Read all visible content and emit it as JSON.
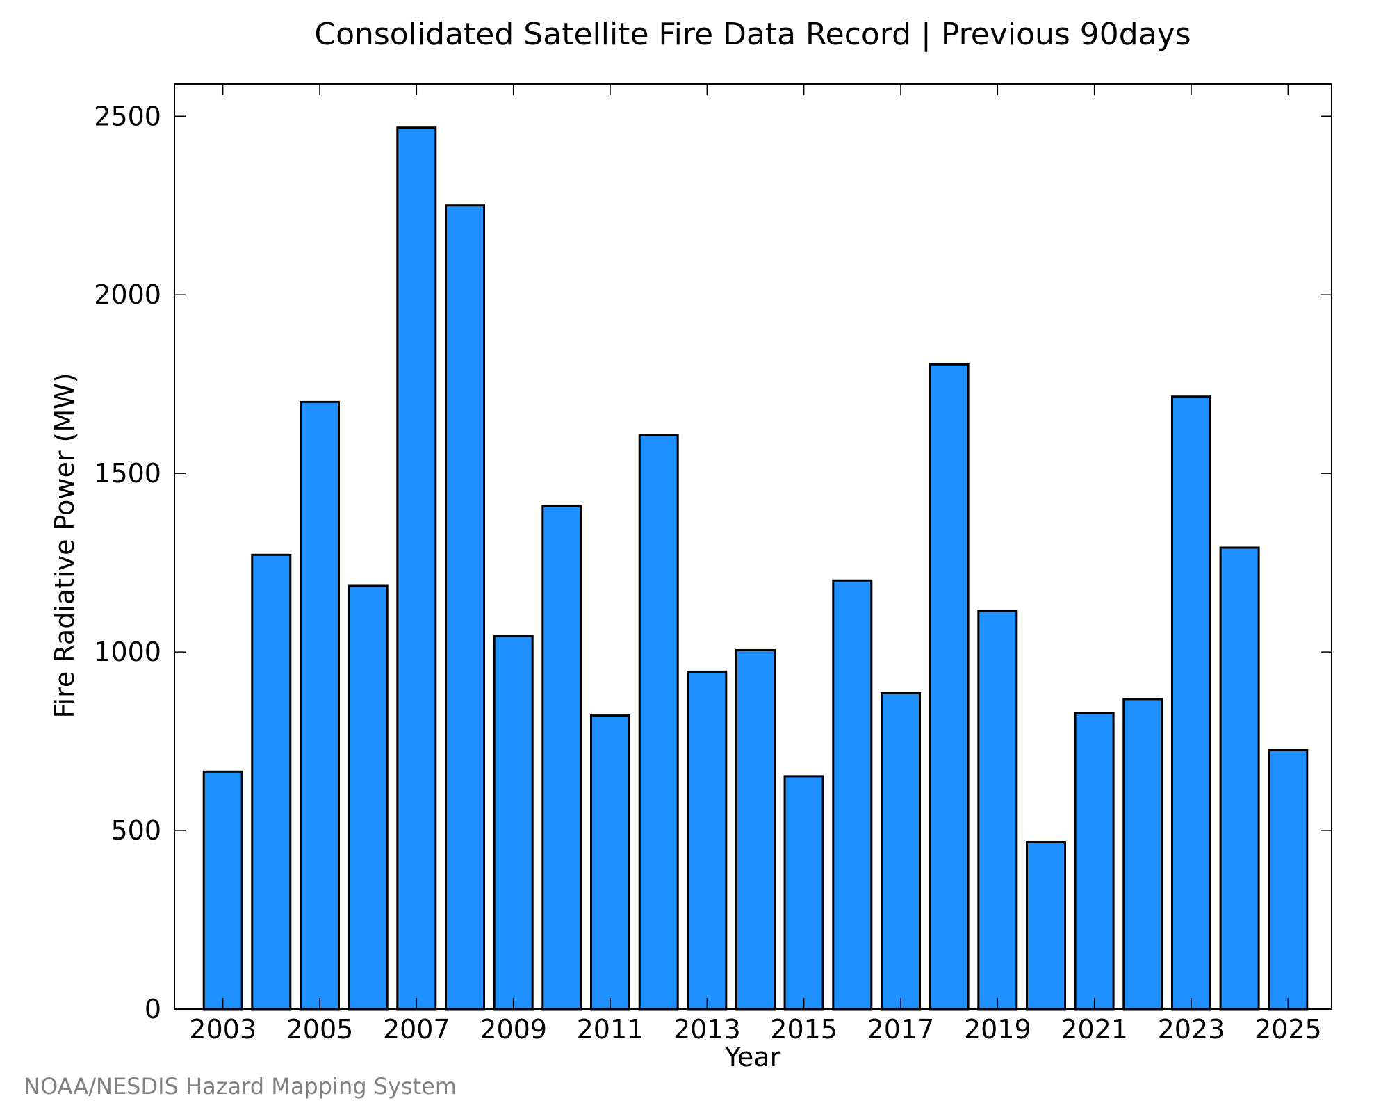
{
  "chart_data": {
    "type": "bar",
    "title": "Consolidated Satellite Fire Data Record | Previous 90days",
    "xlabel": "Year",
    "ylabel": "Fire Radiative Power (MW)",
    "categories": [
      "2003",
      "2004",
      "2005",
      "2006",
      "2007",
      "2008",
      "2009",
      "2010",
      "2011",
      "2012",
      "2013",
      "2014",
      "2015",
      "2016",
      "2017",
      "2018",
      "2019",
      "2020",
      "2021",
      "2022",
      "2023",
      "2024",
      "2025"
    ],
    "x_tick_labels": [
      "2003",
      "2005",
      "2007",
      "2009",
      "2011",
      "2013",
      "2015",
      "2017",
      "2019",
      "2021",
      "2023",
      "2025"
    ],
    "values": [
      665,
      1272,
      1700,
      1185,
      2468,
      2250,
      1045,
      1408,
      822,
      1608,
      945,
      1005,
      652,
      1200,
      885,
      1805,
      1115,
      468,
      830,
      868,
      1715,
      1292,
      725
    ],
    "y_ticks": [
      0,
      500,
      1000,
      1500,
      2000,
      2500
    ],
    "ylim": [
      0,
      2590
    ],
    "xlim": [
      2002.0,
      2025.9
    ],
    "bar_color": "#1e90ff",
    "edge_color": "#000000",
    "grid": false,
    "legend": "none"
  },
  "credit": "NOAA/NESDIS Hazard Mapping System"
}
